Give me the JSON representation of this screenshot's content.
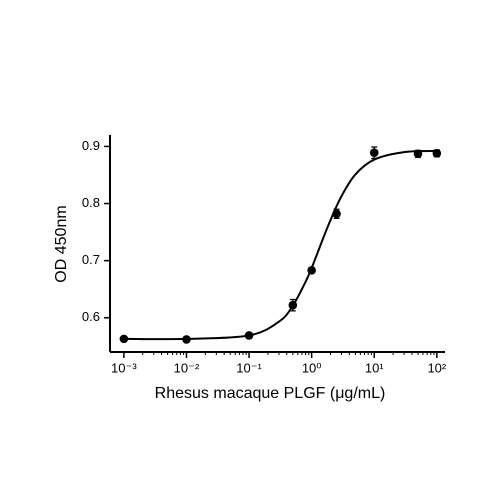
{
  "chart_data": {
    "type": "scatter",
    "x_label": "Rhesus macaque PLGF (μg/mL)",
    "y_label": "OD 450nm",
    "xscale": "log",
    "color": "#000000",
    "xlim": [
      0.0006,
      135
    ],
    "ylim": [
      0.54,
      0.92
    ],
    "xticks": [
      {
        "value": 0.001,
        "label": "10⁻³"
      },
      {
        "value": 0.01,
        "label": "10⁻²"
      },
      {
        "value": 0.1,
        "label": "10⁻¹"
      },
      {
        "value": 1,
        "label": "10⁰"
      },
      {
        "value": 10,
        "label": "10¹"
      },
      {
        "value": 100,
        "label": "10²"
      }
    ],
    "yticks": [
      0.6,
      0.7,
      0.8,
      0.9
    ],
    "x": [
      0.001,
      0.01,
      0.1,
      0.5,
      1,
      2.5,
      10,
      50,
      100
    ],
    "values": [
      0.563,
      0.562,
      0.569,
      0.622,
      0.683,
      0.782,
      0.889,
      0.887,
      0.888
    ],
    "errors": [
      0.002,
      0.002,
      0.003,
      0.01,
      0.004,
      0.008,
      0.01,
      0.006,
      0.006
    ],
    "fit_curve": {
      "x": [
        0.001,
        0.01,
        0.1,
        0.3,
        0.5,
        0.8,
        1,
        1.5,
        2,
        3,
        5,
        10,
        30,
        100
      ],
      "values": [
        0.563,
        0.563,
        0.569,
        0.593,
        0.621,
        0.663,
        0.687,
        0.737,
        0.771,
        0.813,
        0.851,
        0.877,
        0.89,
        0.892
      ]
    }
  }
}
